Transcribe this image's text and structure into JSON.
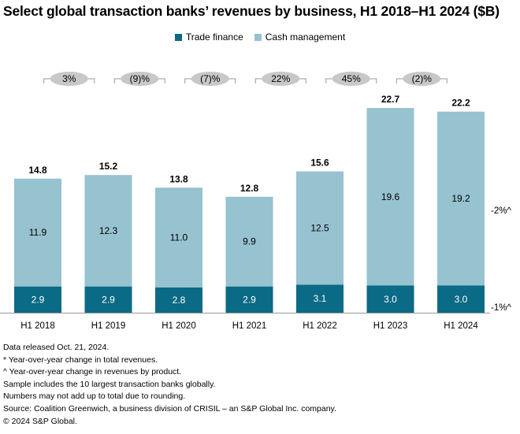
{
  "chart_data": {
    "type": "bar",
    "stacked": true,
    "title": "Select global transaction banks’ revenues by business, H1 2018–H1 2024 ($B)",
    "categories": [
      "H1 2018",
      "H1 2019",
      "H1 2020",
      "H1 2021",
      "H1 2022",
      "H1 2023",
      "H1 2024"
    ],
    "series": [
      {
        "name": "Trade finance",
        "color": "#0b6a85",
        "values": [
          2.9,
          2.9,
          2.8,
          2.9,
          3.1,
          3.0,
          3.0
        ],
        "labels": [
          "2.9",
          "2.9",
          "2.8",
          "2.9",
          "3.1",
          "3.0",
          "3.0"
        ]
      },
      {
        "name": "Cash management",
        "color": "#97c2d0",
        "values": [
          11.9,
          12.3,
          11.0,
          9.9,
          12.5,
          19.6,
          19.2
        ],
        "labels": [
          "11.9",
          "12.3",
          "11.0",
          "9.9",
          "12.5",
          "19.6",
          "19.2"
        ]
      }
    ],
    "totals": [
      "14.8",
      "15.2",
      "13.8",
      "12.8",
      "15.6",
      "22.7",
      "22.2"
    ],
    "yoy_total_change": [
      "3%",
      "(9)%",
      "(7)%",
      "22%",
      "45%",
      "(2)%"
    ],
    "yoy_product_change": {
      "Cash management": "-2%^",
      "Trade finance": "-1%^"
    },
    "legend_position": "top",
    "grid": false,
    "ylim": [
      0,
      23
    ]
  },
  "notes": [
    "Data released Oct. 21, 2024.",
    "* Year-over-year change in total revenues.",
    "^ Year-over-year change in revenues by product.",
    "Sample includes the 10 largest transaction banks globally.",
    "Numbers may not add up to total due to rounding.",
    "Source: Coalition Greenwich, a business division of CRISIL – an S&P Global Inc. company.",
    "© 2024 S&P Global."
  ]
}
